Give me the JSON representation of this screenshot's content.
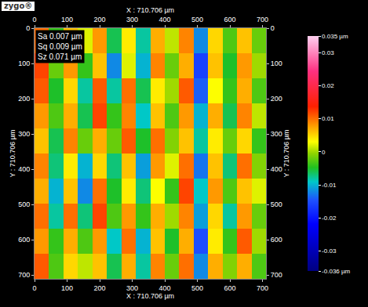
{
  "chart_data": {
    "type": "heatmap",
    "logo": "zygo®",
    "stats": [
      "Sa 0.007 µm",
      "Sq 0.009 µm",
      "Sz 0.071 µm"
    ],
    "x_label": "X : 710.706 µm",
    "y_label": "Y : 710.706 µm",
    "xlim": [
      0,
      710.706
    ],
    "ylim": [
      710.706,
      0
    ],
    "xticks": [
      0,
      100,
      200,
      300,
      400,
      500,
      600,
      700
    ],
    "yticks": [
      0,
      100,
      200,
      300,
      400,
      500,
      600,
      700
    ],
    "grid": false,
    "x": [
      22.2,
      66.6,
      111.0,
      155.5,
      199.9,
      244.3,
      288.7,
      333.1,
      377.6,
      422.0,
      466.4,
      510.8,
      555.3,
      599.7,
      644.1,
      688.5
    ],
    "y": [
      35.5,
      106.6,
      177.7,
      248.7,
      319.8,
      390.9,
      462.0,
      533.0,
      604.1,
      675.2
    ],
    "cells": [
      [
        0.01,
        -0.004,
        0.006,
        0.002,
        0.008,
        -0.006,
        0.004,
        -0.008,
        0.007,
        0.001,
        0.009,
        -0.012,
        0.005,
        -0.003,
        0.006,
        -0.002
      ],
      [
        0.012,
        -0.002,
        0.008,
        -0.004,
        0.006,
        -0.012,
        0.002,
        -0.01,
        0.009,
        -0.002,
        0.007,
        -0.016,
        0.006,
        -0.005,
        0.008,
        0.0
      ],
      [
        0.011,
        -0.005,
        0.005,
        -0.008,
        0.011,
        -0.008,
        0.01,
        -0.006,
        0.004,
        0.0,
        0.011,
        -0.014,
        0.003,
        -0.004,
        0.007,
        -0.003
      ],
      [
        0.008,
        -0.003,
        0.007,
        -0.006,
        0.012,
        -0.004,
        0.009,
        -0.009,
        0.006,
        -0.003,
        0.008,
        -0.01,
        0.007,
        -0.006,
        0.009,
        0.001
      ],
      [
        0.006,
        -0.006,
        0.009,
        -0.002,
        0.007,
        -0.002,
        0.011,
        -0.005,
        0.01,
        -0.001,
        0.006,
        -0.008,
        0.004,
        -0.002,
        0.005,
        -0.004
      ],
      [
        0.009,
        -0.007,
        0.004,
        -0.01,
        0.005,
        -0.007,
        0.006,
        -0.011,
        0.008,
        0.002,
        0.01,
        -0.013,
        0.006,
        -0.007,
        0.01,
        -0.001
      ],
      [
        0.007,
        -0.01,
        0.006,
        -0.012,
        0.01,
        -0.005,
        0.004,
        -0.007,
        0.003,
        -0.004,
        0.012,
        -0.009,
        0.008,
        -0.003,
        0.006,
        0.002
      ],
      [
        0.01,
        -0.008,
        0.01,
        -0.007,
        0.012,
        -0.003,
        0.008,
        -0.004,
        0.007,
        0.0,
        0.009,
        -0.011,
        0.005,
        -0.008,
        0.008,
        -0.002
      ],
      [
        0.008,
        -0.004,
        0.007,
        -0.003,
        0.008,
        -0.009,
        0.01,
        -0.01,
        0.006,
        -0.005,
        0.007,
        -0.015,
        0.004,
        -0.004,
        0.011,
        0.0
      ],
      [
        0.011,
        -0.003,
        0.005,
        0.001,
        0.006,
        -0.006,
        0.007,
        -0.008,
        0.009,
        -0.002,
        0.01,
        -0.012,
        0.007,
        -0.001,
        0.007,
        -0.003
      ]
    ],
    "colorbar_range": [
      -0.036,
      0.035
    ],
    "colorbar_ticks": [
      {
        "value": 0.035,
        "label": "0.035 µm"
      },
      0.03,
      0.02,
      0.01,
      0,
      -0.01,
      -0.02,
      -0.03,
      {
        "value": -0.036,
        "label": "-0.036 µm"
      }
    ]
  }
}
